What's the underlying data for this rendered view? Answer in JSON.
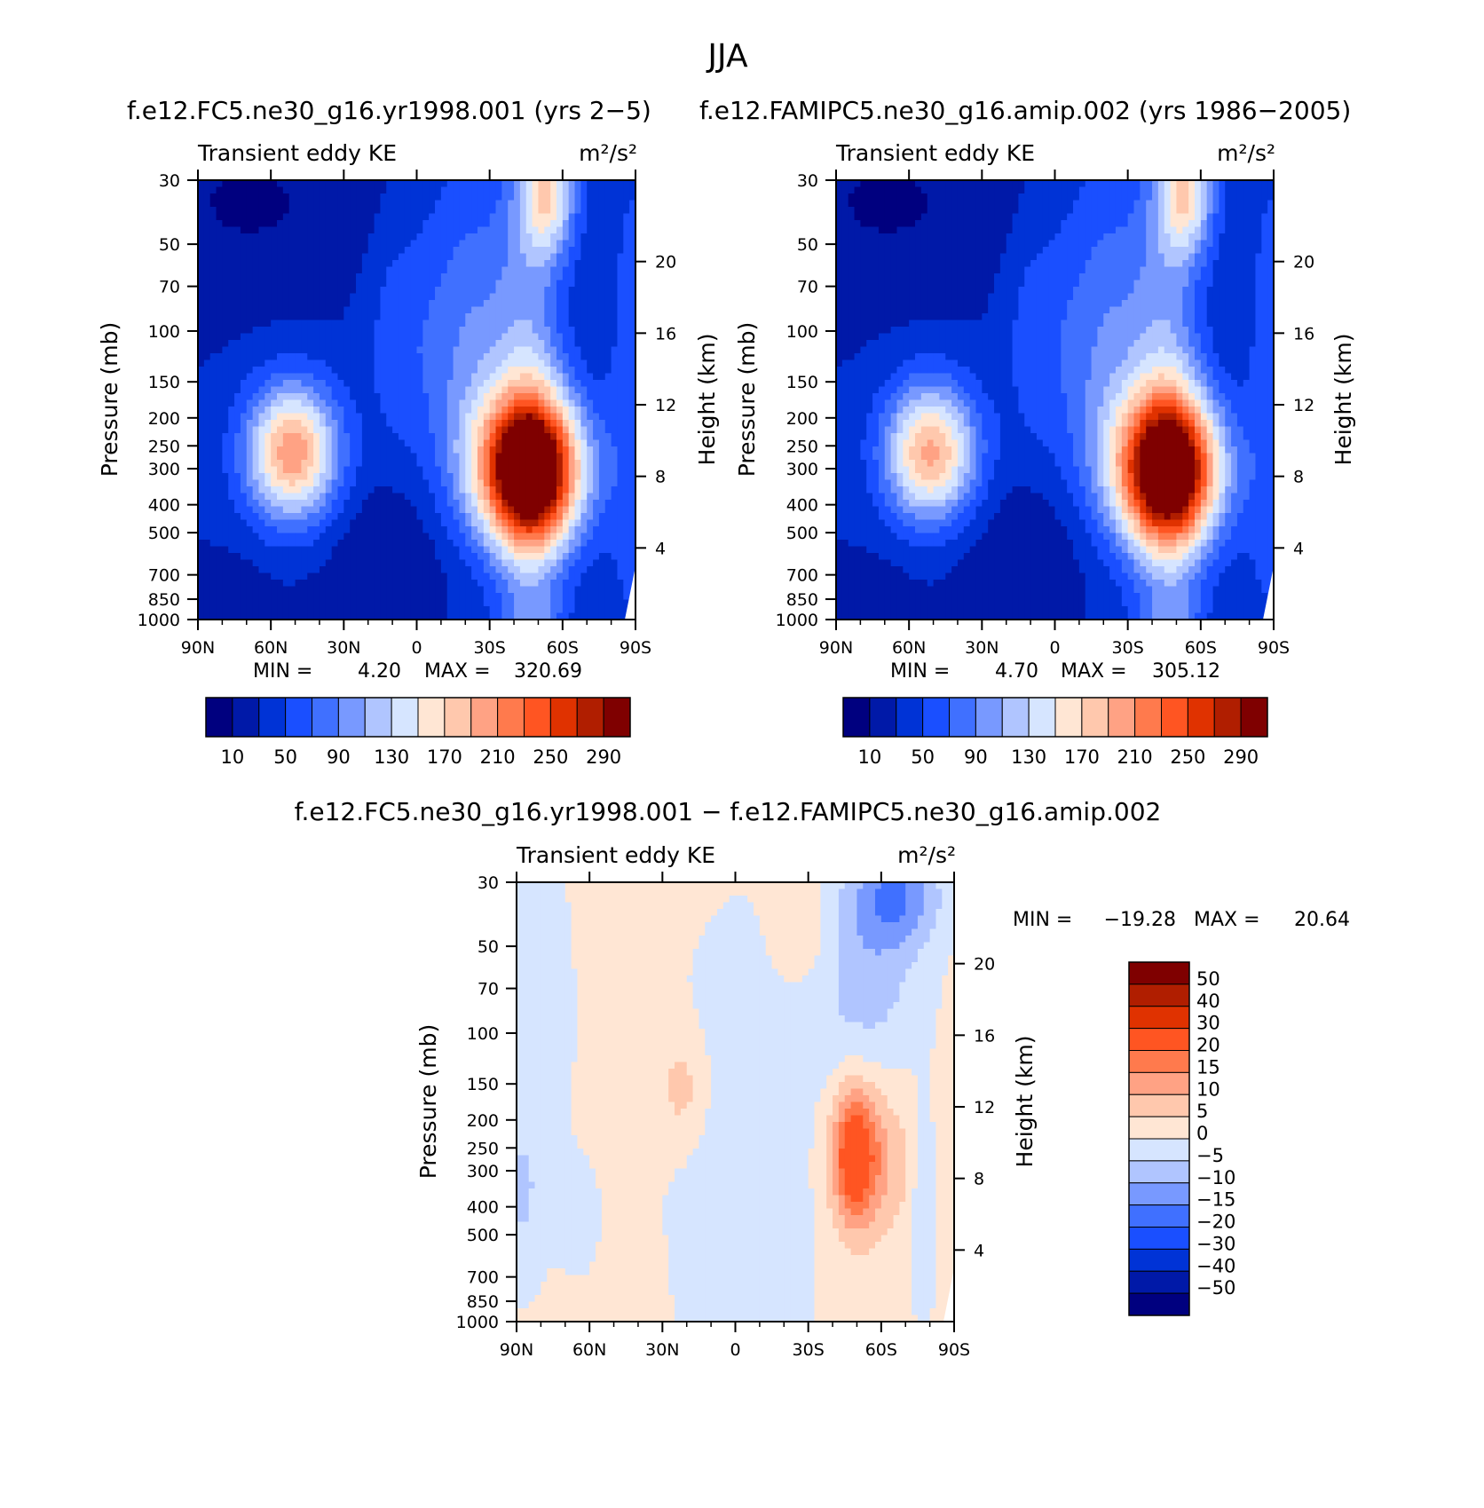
{
  "figure_title": "JJA",
  "chart_data": [
    {
      "type": "heatmap",
      "title": "f.e12.FC5.ne30_g16.yr1998.001 (yrs 2−5)",
      "subtitle_left": "Transient eddy KE",
      "units": "m²/s²",
      "ylabel": "Pressure (mb)",
      "ylabel_right": "Height (km)",
      "x_ticks": [
        "90N",
        "60N",
        "30N",
        "0",
        "30S",
        "60S",
        "90S"
      ],
      "y_ticks": [
        "30",
        "50",
        "70",
        "100",
        "150",
        "200",
        "250",
        "300",
        "400",
        "500",
        "700",
        "850",
        "1000"
      ],
      "y_right_ticks": [
        "20",
        "16",
        "12",
        "8",
        "4"
      ],
      "min_label": "MIN =",
      "min_value": "4.20",
      "max_label": "MAX =",
      "max_value": "320.69",
      "min": 4.2,
      "max": 320.69,
      "peaks": [
        {
          "lat": -48,
          "p": 265,
          "value": 320
        },
        {
          "lat": 50,
          "p": 250,
          "value": 185
        },
        {
          "lat": -50,
          "p": 30,
          "value": 135
        }
      ],
      "colorbar_ticks": [
        "10",
        "50",
        "90",
        "130",
        "170",
        "210",
        "250",
        "290"
      ]
    },
    {
      "type": "heatmap",
      "title": "f.e12.FAMIPC5.ne30_g16.amip.002 (yrs 1986−2005)",
      "subtitle_left": "Transient eddy KE",
      "units": "m²/s²",
      "ylabel": "Pressure (mb)",
      "ylabel_right": "Height (km)",
      "x_ticks": [
        "90N",
        "60N",
        "30N",
        "0",
        "30S",
        "60S",
        "90S"
      ],
      "y_ticks": [
        "30",
        "50",
        "70",
        "100",
        "150",
        "200",
        "250",
        "300",
        "400",
        "500",
        "700",
        "850",
        "1000"
      ],
      "y_right_ticks": [
        "20",
        "16",
        "12",
        "8",
        "4"
      ],
      "min_label": "MIN =",
      "min_value": "4.70",
      "max_label": "MAX =",
      "max_value": "305.12",
      "min": 4.7,
      "max": 305.12,
      "peaks": [
        {
          "lat": -48,
          "p": 265,
          "value": 300
        },
        {
          "lat": 50,
          "p": 250,
          "value": 195
        },
        {
          "lat": -50,
          "p": 30,
          "value": 145
        }
      ],
      "colorbar_ticks": [
        "10",
        "50",
        "90",
        "130",
        "170",
        "210",
        "250",
        "290"
      ]
    },
    {
      "type": "heatmap",
      "title": "f.e12.FC5.ne30_g16.yr1998.001 − f.e12.FAMIPC5.ne30_g16.amip.002",
      "subtitle_left": "Transient eddy KE",
      "units": "m²/s²",
      "ylabel": "Pressure (mb)",
      "ylabel_right": "Height (km)",
      "x_ticks": [
        "90N",
        "60N",
        "30N",
        "0",
        "30S",
        "60S",
        "90S"
      ],
      "y_ticks": [
        "30",
        "50",
        "70",
        "100",
        "150",
        "200",
        "250",
        "300",
        "400",
        "500",
        "700",
        "850",
        "1000"
      ],
      "y_right_ticks": [
        "20",
        "16",
        "12",
        "8",
        "4"
      ],
      "min_label": "MIN =",
      "min_value": "−19.28",
      "max_label": "MAX =",
      "max_value": "20.64",
      "min": -19.28,
      "max": 20.64,
      "peaks": [
        {
          "lat": -50,
          "p": 200,
          "value": 20
        },
        {
          "lat": -65,
          "p": 40,
          "value": -19
        },
        {
          "lat": 20,
          "p": 120,
          "value": 8
        }
      ],
      "colorbar_ticks": [
        "50",
        "40",
        "30",
        "20",
        "15",
        "10",
        "5",
        "0",
        "−5",
        "−10",
        "−15",
        "−20",
        "−30",
        "−40",
        "−50"
      ]
    }
  ],
  "colors": {
    "abs_palette": [
      "#00007f",
      "#0019a8",
      "#0033d6",
      "#1a4fff",
      "#4070ff",
      "#7899ff",
      "#b0c5ff",
      "#d6e5ff",
      "#ffe6d4",
      "#ffc8ad",
      "#ffa284",
      "#ff7a4d",
      "#ff5522",
      "#e03200",
      "#b01e00",
      "#7f0000"
    ],
    "diff_palette": [
      "#7f0000",
      "#b01e00",
      "#e03200",
      "#ff5522",
      "#ff7a4d",
      "#ffa284",
      "#ffc8ad",
      "#ffe6d4",
      "#d6e5ff",
      "#b0c5ff",
      "#7899ff",
      "#4070ff",
      "#1a4fff",
      "#0033d6",
      "#0019a8",
      "#00007f"
    ]
  }
}
